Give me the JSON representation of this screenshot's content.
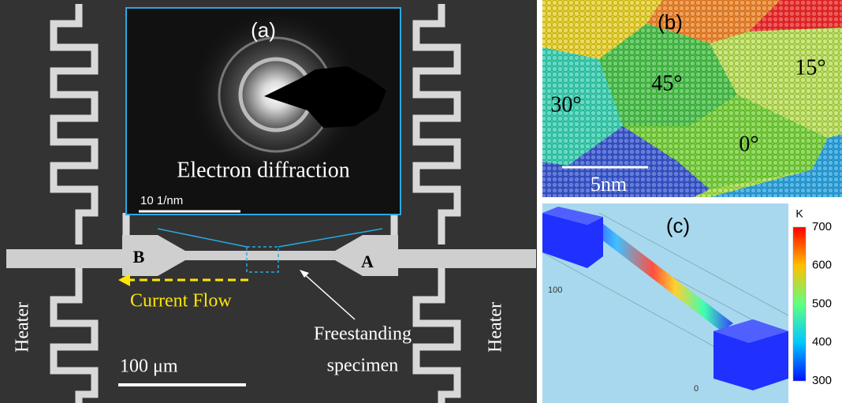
{
  "panel_a": {
    "label": "(a)",
    "inset_title": "Electron diffraction",
    "inset_scale": "10 1/nm",
    "end_b": "B",
    "end_a": "A",
    "current": "Current Flow",
    "specimen_line1": "Freestanding",
    "specimen_line2": "specimen",
    "heater_left": "Heater",
    "heater_right": "Heater",
    "scale": "100 μm"
  },
  "panel_b": {
    "label": "(b)",
    "angles": [
      "30°",
      "45°",
      "15°",
      "0°"
    ],
    "scale": "5nm"
  },
  "panel_c": {
    "label": "(c)",
    "colorbar_unit": "K",
    "colorbar_ticks": [
      700,
      600,
      500,
      400,
      300
    ],
    "axis_labels": [
      "100",
      "0"
    ]
  }
}
